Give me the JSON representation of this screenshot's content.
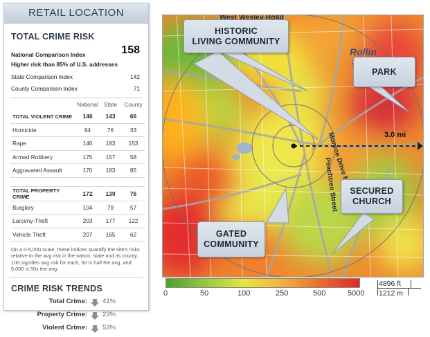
{
  "panel": {
    "header": "RETAIL LOCATION",
    "crime_risk_title": "TOTAL CRIME RISK",
    "national_label": "National Comparison Index",
    "national_value": "158",
    "national_note": "Higher risk than 85% of U.S. addresses",
    "state_label": "State Comparison Index",
    "state_value": "142",
    "county_label": "County Comparison Index",
    "county_value": "71",
    "col_national": "National",
    "col_state": "State",
    "col_county": "County",
    "violent_rows": [
      {
        "label": "TOTAL VIOLENT CRIME",
        "national": "146",
        "state": "143",
        "county": "66"
      },
      {
        "label": "Homicide",
        "national": "94",
        "state": "76",
        "county": "33"
      },
      {
        "label": "Rape",
        "national": "146",
        "state": "183",
        "county": "153"
      },
      {
        "label": "Armed Robbery",
        "national": "175",
        "state": "157",
        "county": "58"
      },
      {
        "label": "Aggravated Assault",
        "national": "170",
        "state": "183",
        "county": "85"
      }
    ],
    "property_rows": [
      {
        "label": "TOTAL PROPERTY CRIME",
        "national": "172",
        "state": "139",
        "county": "76"
      },
      {
        "label": "Burglary",
        "national": "104",
        "state": "79",
        "county": "57"
      },
      {
        "label": "Larceny-Theft",
        "national": "203",
        "state": "177",
        "county": "122"
      },
      {
        "label": "Vehicle Theft",
        "national": "207",
        "state": "165",
        "county": "62"
      }
    ],
    "note": "On a 0-5,000 scale, these indices quantify the site's risks relative to the avg risk in the nation, state and its county. 100 signifies avg risk for each, 50 is half the avg, and 5,000 is 50x the avg.",
    "trends_title": "CRIME RISK TRENDS",
    "trends": [
      {
        "label": "Total Crime:",
        "value": "41%"
      },
      {
        "label": "Property Crime:",
        "value": "23%"
      },
      {
        "label": "Violent Crime:",
        "value": "53%"
      }
    ]
  },
  "map": {
    "callouts": {
      "historic_line1": "HISTORIC",
      "historic_line2": "LIVING COMMUNITY",
      "park": "PARK",
      "secured_line1": "SECURED",
      "secured_line2": "CHURCH",
      "gated_line1": "GATED",
      "gated_line2": "COMMUNITY"
    },
    "radius_label": "3.0 mi",
    "street_top": "West Wesley Road",
    "street_monroe": "Monroe Drive Northeast",
    "street_peachtree": "Peachtree Street",
    "place_rollins": "Rollin",
    "place_st": "St"
  },
  "legend": {
    "ticks": [
      "0",
      "50",
      "100",
      "250",
      "500",
      "5000"
    ],
    "scale_ft": "4896 ft",
    "scale_m": "1212 m"
  },
  "colors": {
    "low_risk": "#4aa02c",
    "mid_risk": "#e8e63c",
    "high_risk": "#e0262a",
    "panel_header": "#c3ceda"
  }
}
